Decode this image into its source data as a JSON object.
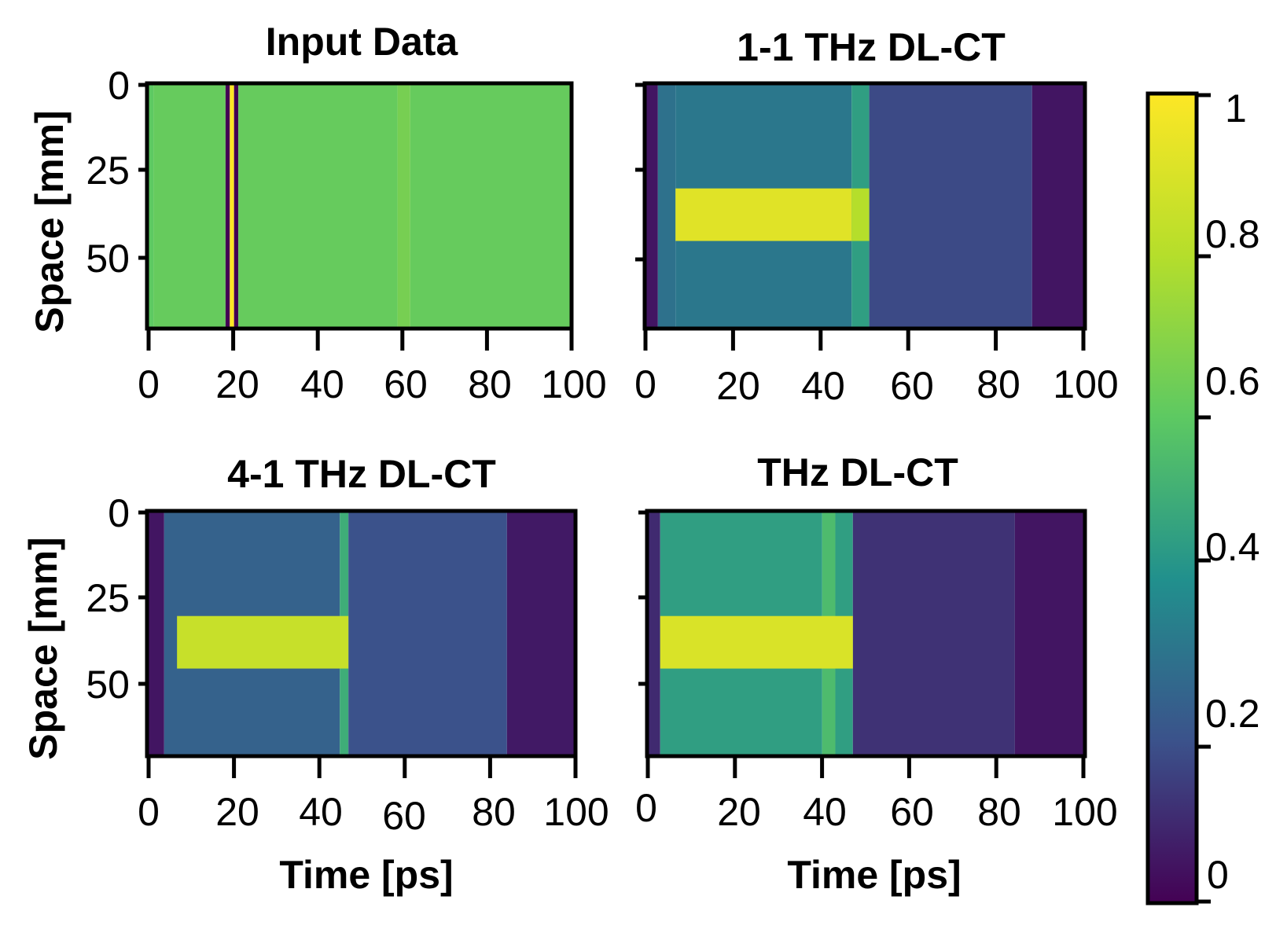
{
  "chart_data": [
    {
      "type": "heatmap",
      "title": "Input Data",
      "xlabel": "",
      "ylabel": "Space [mm]",
      "xlim": [
        0,
        100
      ],
      "ylim": [
        0,
        70
      ],
      "xticks": [
        0,
        20,
        40,
        60,
        80,
        100
      ],
      "yticks": [
        0,
        25,
        50
      ],
      "x_bands": [
        [
          0,
          1.5,
          0.6
        ],
        [
          1.5,
          18.5,
          0.62
        ],
        [
          18.5,
          19.5,
          0.0
        ],
        [
          19.5,
          20.5,
          1.0
        ],
        [
          20.5,
          21.5,
          0.0
        ],
        [
          21.5,
          59,
          0.62
        ],
        [
          59,
          62,
          0.66
        ],
        [
          62,
          100,
          0.62
        ]
      ],
      "intensity_peak": [],
      "colorbar": false
    },
    {
      "type": "heatmap",
      "title": "1-1 THz DL-CT",
      "xlabel": "",
      "ylabel": "",
      "xlim": [
        0,
        100
      ],
      "ylim": [
        0,
        70
      ],
      "xticks": [
        0,
        20,
        40,
        60,
        80,
        100
      ],
      "yticks": [
        0,
        25,
        50
      ],
      "x_bands": [
        [
          0,
          3,
          0.05
        ],
        [
          3,
          7,
          0.3
        ],
        [
          7,
          47,
          0.32
        ],
        [
          47,
          51,
          0.45
        ],
        [
          51,
          88,
          0.18
        ],
        [
          88,
          100,
          0.05
        ]
      ],
      "intensity_peak": [
        [
          7,
          47,
          30,
          45,
          0.92
        ],
        [
          47,
          51,
          30,
          45,
          0.8
        ]
      ],
      "colorbar": false
    },
    {
      "type": "heatmap",
      "title": "4-1 THz DL-CT",
      "xlabel": "Time [ps]",
      "ylabel": "Space [mm]",
      "xlim": [
        0,
        100
      ],
      "ylim": [
        0,
        70
      ],
      "xticks": [
        0,
        20,
        40,
        60,
        80,
        100
      ],
      "yticks": [
        0,
        25,
        50
      ],
      "x_bands": [
        [
          0,
          4,
          0.05
        ],
        [
          4,
          45,
          0.25
        ],
        [
          45,
          47,
          0.5
        ],
        [
          47,
          84,
          0.2
        ],
        [
          84,
          100,
          0.06
        ]
      ],
      "intensity_peak": [
        [
          7,
          47,
          30,
          45,
          0.85
        ]
      ],
      "colorbar": false
    },
    {
      "type": "heatmap",
      "title": "THz DL-CT",
      "xlabel": "Time [ps]",
      "ylabel": "",
      "xlim": [
        0,
        100
      ],
      "ylim": [
        0,
        70
      ],
      "xticks": [
        0,
        20,
        40,
        60,
        80,
        100
      ],
      "yticks": [
        0,
        25,
        50
      ],
      "x_bands": [
        [
          0,
          3,
          0.1
        ],
        [
          3,
          40,
          0.45
        ],
        [
          40,
          43,
          0.55
        ],
        [
          43,
          47,
          0.45
        ],
        [
          47,
          84,
          0.12
        ],
        [
          84,
          100,
          0.05
        ]
      ],
      "intensity_peak": [
        [
          3,
          47,
          30,
          45,
          0.9
        ]
      ],
      "colorbar": false
    }
  ],
  "colorbar": {
    "range": [
      0,
      1
    ],
    "ticks": [
      "0",
      "0.2",
      "0.4",
      "0.6",
      "0.8",
      "1"
    ],
    "colormap": "viridis"
  }
}
